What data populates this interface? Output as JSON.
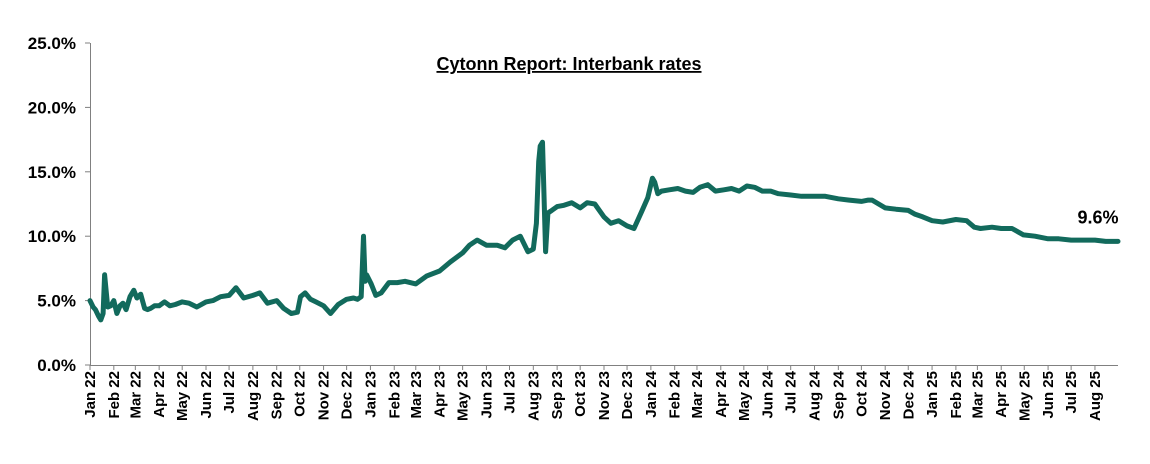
{
  "chart_data": {
    "type": "line",
    "title": "Cytonn Report: Interbank rates",
    "xlabel": "",
    "ylabel": "",
    "ylim": [
      0,
      25
    ],
    "yticks": [
      "0.0%",
      "5.0%",
      "10.0%",
      "15.0%",
      "20.0%",
      "25.0%"
    ],
    "xticks": [
      "Jan 22",
      "Feb 22",
      "Mar 22",
      "Apr 22",
      "May 22",
      "Jun 22",
      "Jul 22",
      "Aug 22",
      "Sep 22",
      "Oct 22",
      "Nov 22",
      "Dec 22",
      "Jan 23",
      "Feb 23",
      "Mar 23",
      "Apr 23",
      "May 23",
      "Jun 23",
      "Jul 23",
      "Aug 23",
      "Sep 23",
      "Oct 23",
      "Nov 23",
      "Dec 23",
      "Jan 24",
      "Feb 24",
      "Mar 24",
      "Apr 24",
      "May 24",
      "Jun 24",
      "Jul 24",
      "Aug 24",
      "Sep 24",
      "Oct 24",
      "Nov 24",
      "Dec 24",
      "Jan 25",
      "Feb 25",
      "Mar 25",
      "Apr 25",
      "May 25",
      "Jun 25",
      "Jul 25",
      "Aug 25"
    ],
    "grid": false,
    "legend": "none",
    "color": "#126a5c",
    "series": [
      {
        "x": [
          "2022-01-01",
          "2022-01-05",
          "2022-01-08",
          "2022-01-12",
          "2022-01-15",
          "2022-01-18",
          "2022-01-20",
          "2022-01-24",
          "2022-01-28",
          "2022-02-01",
          "2022-02-05",
          "2022-02-09",
          "2022-02-13",
          "2022-02-17",
          "2022-02-22",
          "2022-02-27",
          "2022-03-03",
          "2022-03-08",
          "2022-03-13",
          "2022-03-17",
          "2022-03-21",
          "2022-03-26",
          "2022-04-01",
          "2022-04-08",
          "2022-04-15",
          "2022-04-22",
          "2022-05-01",
          "2022-05-10",
          "2022-05-20",
          "2022-06-01",
          "2022-06-10",
          "2022-06-20",
          "2022-07-01",
          "2022-07-10",
          "2022-07-20",
          "2022-08-01",
          "2022-08-10",
          "2022-08-20",
          "2022-09-01",
          "2022-09-10",
          "2022-09-20",
          "2022-09-28",
          "2022-10-02",
          "2022-10-08",
          "2022-10-15",
          "2022-10-22",
          "2022-11-01",
          "2022-11-10",
          "2022-11-20",
          "2022-12-01",
          "2022-12-10",
          "2022-12-15",
          "2022-12-20",
          "2022-12-23",
          "2022-12-25",
          "2022-12-27",
          "2023-01-02",
          "2023-01-08",
          "2023-01-15",
          "2023-01-25",
          "2023-02-05",
          "2023-02-15",
          "2023-03-01",
          "2023-03-15",
          "2023-04-01",
          "2023-04-15",
          "2023-05-01",
          "2023-05-10",
          "2023-05-20",
          "2023-06-01",
          "2023-06-15",
          "2023-06-25",
          "2023-07-05",
          "2023-07-15",
          "2023-07-25",
          "2023-08-01",
          "2023-08-05",
          "2023-08-08",
          "2023-08-10",
          "2023-08-13",
          "2023-08-17",
          "2023-08-20",
          "2023-08-25",
          "2023-09-01",
          "2023-09-10",
          "2023-09-20",
          "2023-10-01",
          "2023-10-10",
          "2023-10-20",
          "2023-11-01",
          "2023-11-10",
          "2023-11-20",
          "2023-12-01",
          "2023-12-10",
          "2023-12-20",
          "2023-12-28",
          "2024-01-03",
          "2024-01-06",
          "2024-01-10",
          "2024-01-15",
          "2024-01-25",
          "2024-02-05",
          "2024-02-15",
          "2024-02-25",
          "2024-03-05",
          "2024-03-15",
          "2024-03-25",
          "2024-04-05",
          "2024-04-15",
          "2024-04-25",
          "2024-05-05",
          "2024-05-15",
          "2024-05-25",
          "2024-06-05",
          "2024-06-15",
          "2024-07-01",
          "2024-07-15",
          "2024-08-01",
          "2024-08-15",
          "2024-09-01",
          "2024-09-15",
          "2024-10-01",
          "2024-10-10",
          "2024-10-15",
          "2024-11-01",
          "2024-11-15",
          "2024-12-01",
          "2024-12-10",
          "2024-12-20",
          "2025-01-01",
          "2025-01-15",
          "2025-02-01",
          "2025-02-15",
          "2025-02-25",
          "2025-03-05",
          "2025-03-20",
          "2025-04-01",
          "2025-04-15",
          "2025-04-30",
          "2025-05-15",
          "2025-06-01",
          "2025-06-15",
          "2025-07-01",
          "2025-07-15",
          "2025-08-01",
          "2025-08-15",
          "2025-08-31"
        ],
        "values": [
          5.0,
          4.5,
          4.3,
          3.8,
          3.5,
          4.0,
          7.0,
          4.5,
          4.6,
          5.0,
          4.0,
          4.6,
          4.8,
          4.3,
          5.3,
          5.8,
          5.2,
          5.5,
          4.4,
          4.3,
          4.4,
          4.6,
          4.6,
          4.9,
          4.6,
          4.7,
          4.9,
          4.8,
          4.5,
          4.9,
          5.0,
          5.3,
          5.4,
          6.0,
          5.2,
          5.4,
          5.6,
          4.8,
          5.0,
          4.4,
          4.0,
          4.1,
          5.3,
          5.6,
          5.1,
          4.9,
          4.6,
          4.0,
          4.7,
          5.1,
          5.2,
          5.1,
          5.3,
          10.0,
          6.5,
          7.0,
          6.3,
          5.4,
          5.6,
          6.4,
          6.4,
          6.5,
          6.3,
          6.9,
          7.3,
          8.0,
          8.7,
          9.3,
          9.7,
          9.3,
          9.3,
          9.1,
          9.7,
          10.0,
          8.8,
          9.0,
          11.0,
          15.8,
          17.0,
          17.3,
          8.8,
          11.8,
          12.0,
          12.3,
          12.4,
          12.6,
          12.2,
          12.6,
          12.5,
          11.5,
          11.0,
          11.2,
          10.8,
          10.6,
          11.9,
          13.0,
          14.5,
          14.2,
          13.3,
          13.5,
          13.6,
          13.7,
          13.5,
          13.4,
          13.8,
          14.0,
          13.5,
          13.6,
          13.7,
          13.5,
          13.9,
          13.8,
          13.5,
          13.5,
          13.3,
          13.2,
          13.1,
          13.1,
          13.1,
          12.9,
          12.8,
          12.7,
          12.8,
          12.8,
          12.2,
          12.1,
          12.0,
          11.7,
          11.5,
          11.2,
          11.1,
          11.3,
          11.2,
          10.7,
          10.6,
          10.7,
          10.6,
          10.6,
          10.1,
          10.0,
          9.8,
          9.8,
          9.7,
          9.7,
          9.7,
          9.6,
          9.6
        ]
      }
    ],
    "annotations": [
      {
        "text": "9.6%",
        "x": "2025-08-31",
        "y": 9.6
      }
    ]
  }
}
